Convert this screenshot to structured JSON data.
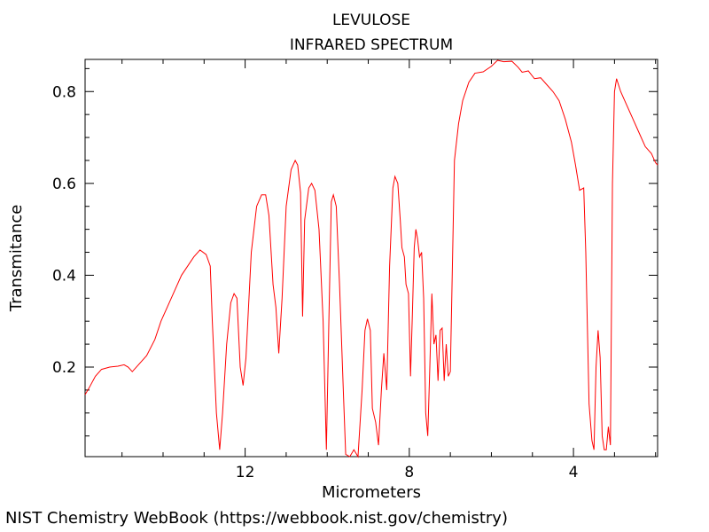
{
  "chart_data": {
    "type": "line",
    "title": "LEVULOSE",
    "subtitle": "INFRARED SPECTRUM",
    "xlabel": "Micrometers",
    "ylabel": "Transmitance",
    "x_reversed": true,
    "xlim": [
      15.9,
      1.95
    ],
    "ylim": [
      0.005,
      0.87
    ],
    "x_ticks": [
      12,
      8,
      4
    ],
    "y_ticks": [
      0.2,
      0.4,
      0.6,
      0.8
    ],
    "grid": false,
    "line_color": "#ff0000",
    "series": [
      {
        "values": [
          [
            15.9,
            0.14
          ],
          [
            15.8,
            0.155
          ],
          [
            15.65,
            0.18
          ],
          [
            15.5,
            0.195
          ],
          [
            15.3,
            0.2
          ],
          [
            15.1,
            0.202
          ],
          [
            14.95,
            0.205
          ],
          [
            14.85,
            0.2
          ],
          [
            14.75,
            0.19
          ],
          [
            14.6,
            0.205
          ],
          [
            14.4,
            0.225
          ],
          [
            14.2,
            0.26
          ],
          [
            14.05,
            0.3
          ],
          [
            13.9,
            0.33
          ],
          [
            13.7,
            0.37
          ],
          [
            13.55,
            0.4
          ],
          [
            13.4,
            0.42
          ],
          [
            13.25,
            0.44
          ],
          [
            13.1,
            0.455
          ],
          [
            12.95,
            0.445
          ],
          [
            12.85,
            0.42
          ],
          [
            12.8,
            0.3
          ],
          [
            12.7,
            0.1
          ],
          [
            12.62,
            0.02
          ],
          [
            12.55,
            0.1
          ],
          [
            12.45,
            0.25
          ],
          [
            12.35,
            0.34
          ],
          [
            12.27,
            0.36
          ],
          [
            12.2,
            0.35
          ],
          [
            12.12,
            0.2
          ],
          [
            12.05,
            0.16
          ],
          [
            11.98,
            0.22
          ],
          [
            11.85,
            0.45
          ],
          [
            11.72,
            0.55
          ],
          [
            11.6,
            0.575
          ],
          [
            11.5,
            0.575
          ],
          [
            11.42,
            0.53
          ],
          [
            11.32,
            0.38
          ],
          [
            11.25,
            0.33
          ],
          [
            11.18,
            0.23
          ],
          [
            11.1,
            0.35
          ],
          [
            11.0,
            0.55
          ],
          [
            10.88,
            0.63
          ],
          [
            10.78,
            0.65
          ],
          [
            10.72,
            0.64
          ],
          [
            10.65,
            0.58
          ],
          [
            10.6,
            0.31
          ],
          [
            10.55,
            0.52
          ],
          [
            10.45,
            0.59
          ],
          [
            10.38,
            0.6
          ],
          [
            10.3,
            0.585
          ],
          [
            10.2,
            0.5
          ],
          [
            10.1,
            0.3
          ],
          [
            10.02,
            0.02
          ],
          [
            9.96,
            0.3
          ],
          [
            9.9,
            0.56
          ],
          [
            9.85,
            0.575
          ],
          [
            9.78,
            0.55
          ],
          [
            9.7,
            0.38
          ],
          [
            9.6,
            0.13
          ],
          [
            9.55,
            0.01
          ],
          [
            9.45,
            0.005
          ],
          [
            9.35,
            0.02
          ],
          [
            9.25,
            0.005
          ],
          [
            9.15,
            0.15
          ],
          [
            9.08,
            0.28
          ],
          [
            9.02,
            0.305
          ],
          [
            8.95,
            0.28
          ],
          [
            8.9,
            0.11
          ],
          [
            8.82,
            0.08
          ],
          [
            8.75,
            0.03
          ],
          [
            8.68,
            0.15
          ],
          [
            8.62,
            0.23
          ],
          [
            8.55,
            0.15
          ],
          [
            8.48,
            0.42
          ],
          [
            8.4,
            0.59
          ],
          [
            8.35,
            0.615
          ],
          [
            8.28,
            0.6
          ],
          [
            8.22,
            0.52
          ],
          [
            8.18,
            0.46
          ],
          [
            8.12,
            0.44
          ],
          [
            8.08,
            0.38
          ],
          [
            8.02,
            0.36
          ],
          [
            7.97,
            0.18
          ],
          [
            7.93,
            0.3
          ],
          [
            7.88,
            0.46
          ],
          [
            7.84,
            0.5
          ],
          [
            7.8,
            0.48
          ],
          [
            7.75,
            0.44
          ],
          [
            7.7,
            0.45
          ],
          [
            7.65,
            0.35
          ],
          [
            7.6,
            0.1
          ],
          [
            7.55,
            0.05
          ],
          [
            7.5,
            0.2
          ],
          [
            7.45,
            0.36
          ],
          [
            7.4,
            0.25
          ],
          [
            7.35,
            0.27
          ],
          [
            7.3,
            0.17
          ],
          [
            7.25,
            0.28
          ],
          [
            7.2,
            0.285
          ],
          [
            7.15,
            0.17
          ],
          [
            7.1,
            0.25
          ],
          [
            7.05,
            0.18
          ],
          [
            7.0,
            0.19
          ],
          [
            6.95,
            0.42
          ],
          [
            6.9,
            0.65
          ],
          [
            6.8,
            0.73
          ],
          [
            6.7,
            0.78
          ],
          [
            6.55,
            0.82
          ],
          [
            6.4,
            0.84
          ],
          [
            6.2,
            0.843
          ],
          [
            6.0,
            0.855
          ],
          [
            5.85,
            0.868
          ],
          [
            5.7,
            0.865
          ],
          [
            5.5,
            0.866
          ],
          [
            5.35,
            0.853
          ],
          [
            5.25,
            0.842
          ],
          [
            5.1,
            0.845
          ],
          [
            4.95,
            0.828
          ],
          [
            4.8,
            0.83
          ],
          [
            4.65,
            0.815
          ],
          [
            4.5,
            0.8
          ],
          [
            4.35,
            0.78
          ],
          [
            4.2,
            0.74
          ],
          [
            4.05,
            0.69
          ],
          [
            3.95,
            0.64
          ],
          [
            3.85,
            0.585
          ],
          [
            3.75,
            0.59
          ],
          [
            3.7,
            0.45
          ],
          [
            3.62,
            0.12
          ],
          [
            3.55,
            0.04
          ],
          [
            3.5,
            0.02
          ],
          [
            3.45,
            0.2
          ],
          [
            3.4,
            0.28
          ],
          [
            3.35,
            0.22
          ],
          [
            3.3,
            0.05
          ],
          [
            3.25,
            0.02
          ],
          [
            3.2,
            0.02
          ],
          [
            3.15,
            0.07
          ],
          [
            3.1,
            0.03
          ],
          [
            3.05,
            0.6
          ],
          [
            3.0,
            0.8
          ],
          [
            2.95,
            0.828
          ],
          [
            2.85,
            0.8
          ],
          [
            2.7,
            0.77
          ],
          [
            2.55,
            0.74
          ],
          [
            2.4,
            0.71
          ],
          [
            2.25,
            0.68
          ],
          [
            2.1,
            0.665
          ],
          [
            2.0,
            0.645
          ],
          [
            1.95,
            0.64
          ]
        ]
      }
    ]
  },
  "footer": {
    "credit": "NIST Chemistry WebBook (https://webbook.nist.gov/chemistry)"
  }
}
